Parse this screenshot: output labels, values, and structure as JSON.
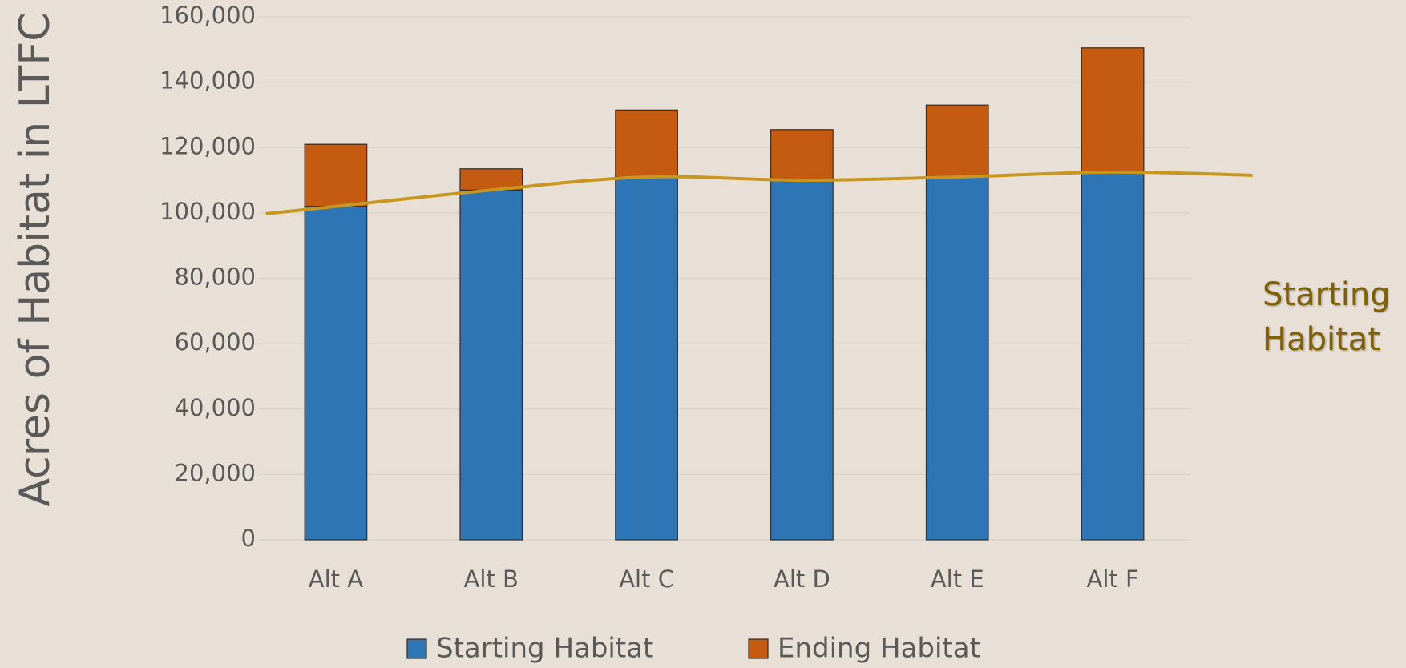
{
  "chart_data": {
    "type": "bar",
    "stacked": true,
    "y_axis_label": "Acres of Habitat in LTFC",
    "categories": [
      "Alt A",
      "Alt B",
      "Alt C",
      "Alt D",
      "Alt E",
      "Alt F"
    ],
    "series": [
      {
        "name": "Starting Habitat",
        "color": "#2e75b6",
        "values": [
          102000,
          107000,
          111000,
          110000,
          111000,
          112500
        ]
      },
      {
        "name": "Ending Habitat",
        "color": "#c55a11",
        "values": [
          19000,
          6500,
          20500,
          15500,
          22000,
          38000
        ]
      }
    ],
    "trend_line": {
      "color": "#c8961e"
    },
    "annotation": {
      "text": "Starting Habitat",
      "color": "#7f6000"
    },
    "ylim": [
      0,
      160000
    ],
    "yticks": [
      0,
      {
        "value": 20000,
        "label": "20,000"
      },
      {
        "value": 40000,
        "label": "40,000"
      },
      {
        "value": 60000,
        "label": "60,000"
      },
      {
        "value": 80000,
        "label": "80,000"
      },
      {
        "value": 100000,
        "label": "100,000"
      },
      {
        "value": 120000,
        "label": "120,000"
      },
      {
        "value": 140000,
        "label": "140,000"
      },
      {
        "value": 160000,
        "label": "160,000"
      }
    ],
    "grid": true
  }
}
